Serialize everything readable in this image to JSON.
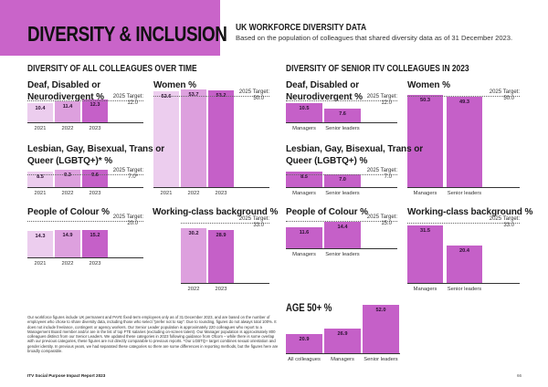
{
  "header": {
    "title": "DIVERSITY & INCLUSION",
    "subtitle_heading": "UK WORKFORCE DIVERSITY DATA",
    "subtitle_text": "Based on the population of colleagues that shared diversity data as of 31 December 2023.",
    "banner_color": "#c964c9"
  },
  "sections": {
    "all": "DIVERSITY OF ALL COLLEAGUES OVER TIME",
    "senior": "DIVERSITY OF SENIOR ITV COLLEAGUES IN 2023"
  },
  "colors": {
    "y2021": "#eccdee",
    "y2022": "#dda0de",
    "y2023": "#c560c8"
  },
  "chart_data": [
    {
      "id": "dd_all",
      "type": "bar",
      "title": "Deaf, Disabled or Neurodivergent %",
      "categories": [
        "2021",
        "2022",
        "2023"
      ],
      "values": [
        10.4,
        11.4,
        12.3
      ],
      "target_label": "2025 Target:",
      "target_value": 12.0,
      "target_text": "12.0"
    },
    {
      "id": "women_all",
      "type": "bar",
      "title": "Women %",
      "categories": [
        "2021",
        "2022",
        "2023"
      ],
      "values": [
        52.6,
        53.7,
        53.2
      ],
      "target_label": "2025 Target:",
      "target_value": 50.0,
      "target_text": "50.0"
    },
    {
      "id": "lgbt_all",
      "type": "bar",
      "title": "Lesbian, Gay, Bisexual, Trans or Queer (LGBTQ+)* %",
      "categories": [
        "2021",
        "2022",
        "2023"
      ],
      "values": [
        8.5,
        9.3,
        9.6
      ],
      "target_label": "2025 Target:",
      "target_value": 7.0,
      "target_text": "7.0*"
    },
    {
      "id": "poc_all",
      "type": "bar",
      "title": "People of Colour %",
      "categories": [
        "2021",
        "2022",
        "2023"
      ],
      "values": [
        14.3,
        14.9,
        15.2
      ],
      "target_label": "2025 Target:",
      "target_value": 20.0,
      "target_text": "20.0"
    },
    {
      "id": "wc_all",
      "type": "bar",
      "title": "Working-class background %",
      "categories": [
        "2022",
        "2023"
      ],
      "values": [
        30.2,
        28.9
      ],
      "target_label": "2025 Target:",
      "target_value": 33.0,
      "target_text": "33.0"
    },
    {
      "id": "dd_sr",
      "type": "bar",
      "title": "Deaf, Disabled or Neurodivergent %",
      "categories": [
        "Managers",
        "Senior leaders"
      ],
      "values": [
        10.5,
        7.6
      ],
      "target_label": "2025 Target:",
      "target_value": 12.0,
      "target_text": "12.0"
    },
    {
      "id": "women_sr",
      "type": "bar",
      "title": "Women %",
      "categories": [
        "Managers",
        "Senior leaders"
      ],
      "values": [
        50.3,
        49.3
      ],
      "target_label": "2025 Target:",
      "target_value": 50.0,
      "target_text": "50.0"
    },
    {
      "id": "lgbt_sr",
      "type": "bar",
      "title": "Lesbian, Gay, Bisexual, Trans or Queer (LGBTQ+) %",
      "categories": [
        "Managers",
        "Senior leaders"
      ],
      "values": [
        8.5,
        7.0
      ],
      "target_label": "2025 Target:",
      "target_value": 7.0,
      "target_text": "7.0"
    },
    {
      "id": "poc_sr",
      "type": "bar",
      "title": "People of Colour %",
      "categories": [
        "Managers",
        "Senior leaders"
      ],
      "values": [
        11.6,
        14.4
      ],
      "target_label": "2025 Target:",
      "target_value": 15.0,
      "target_text": "15.0"
    },
    {
      "id": "wc_sr",
      "type": "bar",
      "title": "Working-class background %",
      "categories": [
        "Managers",
        "Senior leaders"
      ],
      "values": [
        31.5,
        20.4
      ],
      "target_label": "2025 Target:",
      "target_value": 33.0,
      "target_text": "33.0"
    },
    {
      "id": "age",
      "type": "bar",
      "title": "AGE 50+ %",
      "categories": [
        "All colleagues",
        "Managers",
        "Senior leaders"
      ],
      "values": [
        20.9,
        26.9,
        52.0
      ]
    }
  ],
  "footnote": "Our workforce figures include UK permanent and PAYE fixed-term employees only as of 31 December 2023, and are based on the number of employees who chose to share diversity data, including those who select \"prefer not to say\". Due to rounding, figures do not always total 100%. It does not include freelance, contingent or agency workers. Our Senior Leader population is approximately 220 colleagues who report to a Management Board member and/or are in the list of top FTE salaries (excluding on-screen talent). Our Manager population is approximately 800 colleagues distinct from our Senior Leaders. We updated these categories in 2023 following guidance from Ofcom – while there is some overlap with our previous categories, these figures are not directly comparable to previous reports. *Our LGBTQ+ target combines sexual orientation and gender identity. In previous years, we had separated these categories so there are some differences in reporting methods, but the figures here are broadly comparable.",
  "footer": {
    "report": "ITV Social Purpose Impact Report 2023",
    "page": "66"
  }
}
